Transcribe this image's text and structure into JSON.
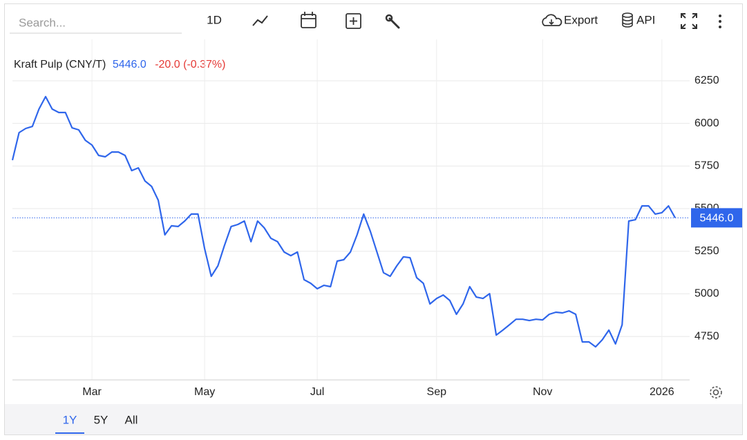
{
  "toolbar": {
    "search_placeholder": "Search...",
    "interval": "1D",
    "export": "Export",
    "api": "API"
  },
  "ranges": [
    "1Y",
    "5Y",
    "All"
  ],
  "chart_data": {
    "type": "line",
    "title": "Kraft Pulp (CNY/T)",
    "last": {
      "value": 5446,
      "label": "5446.0"
    },
    "change": "-20.0 (-0.37%)",
    "categories": [
      null,
      null,
      null,
      null,
      null,
      null,
      null,
      null,
      null,
      null,
      null,
      null,
      "Mar",
      null,
      null,
      null,
      null,
      null,
      null,
      null,
      null,
      null,
      null,
      null,
      null,
      null,
      null,
      null,
      null,
      "May",
      null,
      null,
      null,
      null,
      null,
      null,
      null,
      null,
      null,
      null,
      null,
      null,
      null,
      null,
      null,
      null,
      "Jul",
      null,
      null,
      null,
      null,
      null,
      null,
      null,
      null,
      null,
      null,
      null,
      null,
      null,
      null,
      null,
      null,
      null,
      "Sep",
      null,
      null,
      null,
      null,
      null,
      null,
      null,
      null,
      null,
      null,
      null,
      null,
      null,
      null,
      null,
      "Nov",
      null,
      null,
      null,
      null,
      null,
      null,
      null,
      null,
      null,
      null,
      null,
      null,
      null,
      null,
      null,
      null,
      null,
      "2026",
      null,
      null
    ],
    "series": [
      {
        "name": "Kraft Pulp (CNY/T)",
        "color": "#2f66eb",
        "values": [
          5784,
          5946,
          5970,
          5982,
          6084,
          6157,
          6084,
          6064,
          6064,
          5974,
          5962,
          5901,
          5873,
          5812,
          5804,
          5832,
          5832,
          5812,
          5723,
          5739,
          5662,
          5630,
          5549,
          5346,
          5399,
          5395,
          5427,
          5468,
          5468,
          5265,
          5103,
          5164,
          5285,
          5395,
          5407,
          5427,
          5306,
          5427,
          5387,
          5326,
          5306,
          5245,
          5224,
          5245,
          5083,
          5062,
          5030,
          5050,
          5042,
          5192,
          5200,
          5245,
          5346,
          5468,
          5367,
          5245,
          5124,
          5103,
          5164,
          5217,
          5212,
          5095,
          5062,
          4941,
          4973,
          4993,
          4961,
          4880,
          4941,
          5042,
          4981,
          4973,
          5001,
          4758,
          4787,
          4819,
          4851,
          4851,
          4843,
          4851,
          4847,
          4880,
          4892,
          4888,
          4900,
          4880,
          4718,
          4718,
          4689,
          4730,
          4787,
          4706,
          4819,
          5427,
          5435,
          5516,
          5516,
          5468,
          5476,
          5516,
          5446
        ]
      }
    ],
    "ylim": [
      4495,
      6493
    ],
    "yticks": [
      4750,
      5000,
      5250,
      5500,
      5750,
      6000,
      6250
    ],
    "grid": true,
    "change_color": "#e53935"
  }
}
